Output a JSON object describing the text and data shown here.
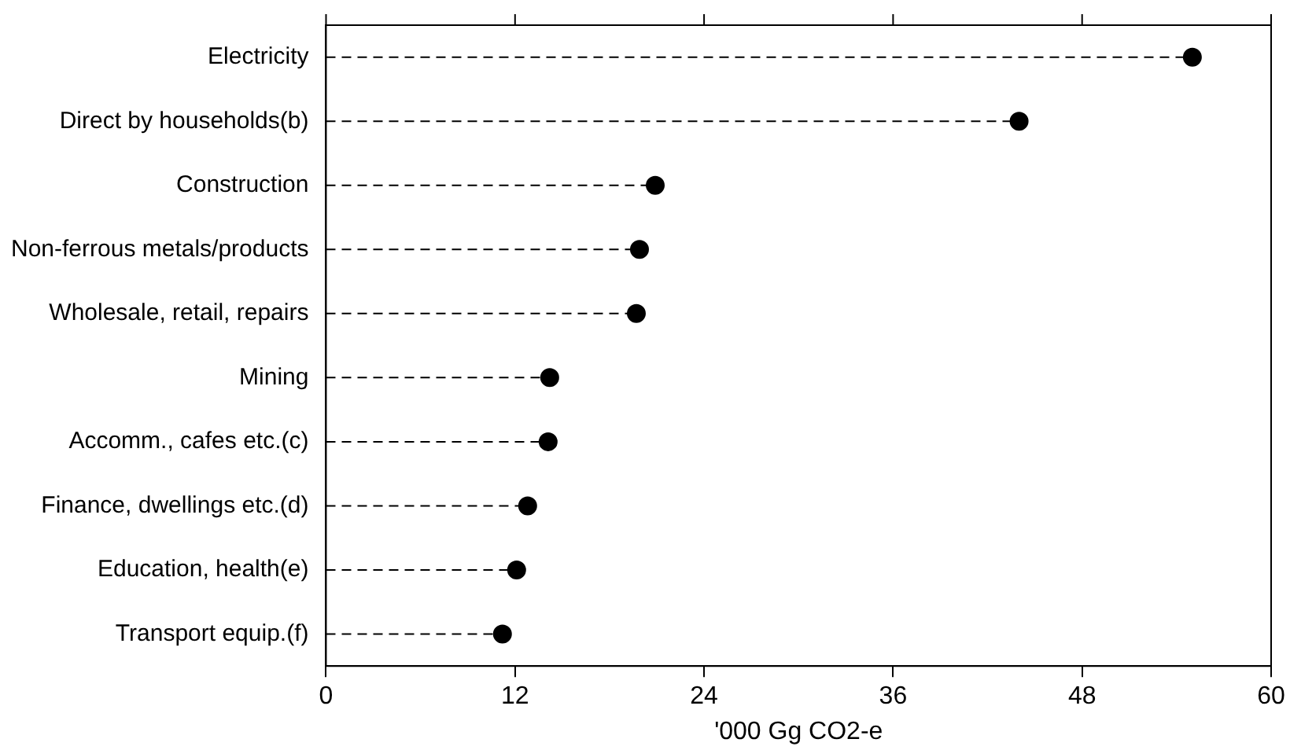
{
  "chart_data": {
    "type": "lollipop",
    "orientation": "horizontal",
    "xlabel": "'000 Gg CO2-e",
    "categories": [
      "Electricity",
      "Direct by households(b)",
      "Construction",
      "Non-ferrous metals/products",
      "Wholesale, retail, repairs",
      "Mining",
      "Accomm., cafes etc.(c)",
      "Finance, dwellings etc.(d)",
      "Education, health(e)",
      "Transport equip.(f)"
    ],
    "values": [
      55.0,
      44.0,
      20.9,
      19.9,
      19.7,
      14.2,
      14.1,
      12.8,
      12.1,
      11.2
    ],
    "color": "#000000",
    "line_style": "dashed",
    "marker": "circle",
    "xlim": [
      0,
      60
    ],
    "xticks": [
      0,
      12,
      24,
      36,
      48,
      60
    ],
    "grid": false,
    "legend": false
  }
}
